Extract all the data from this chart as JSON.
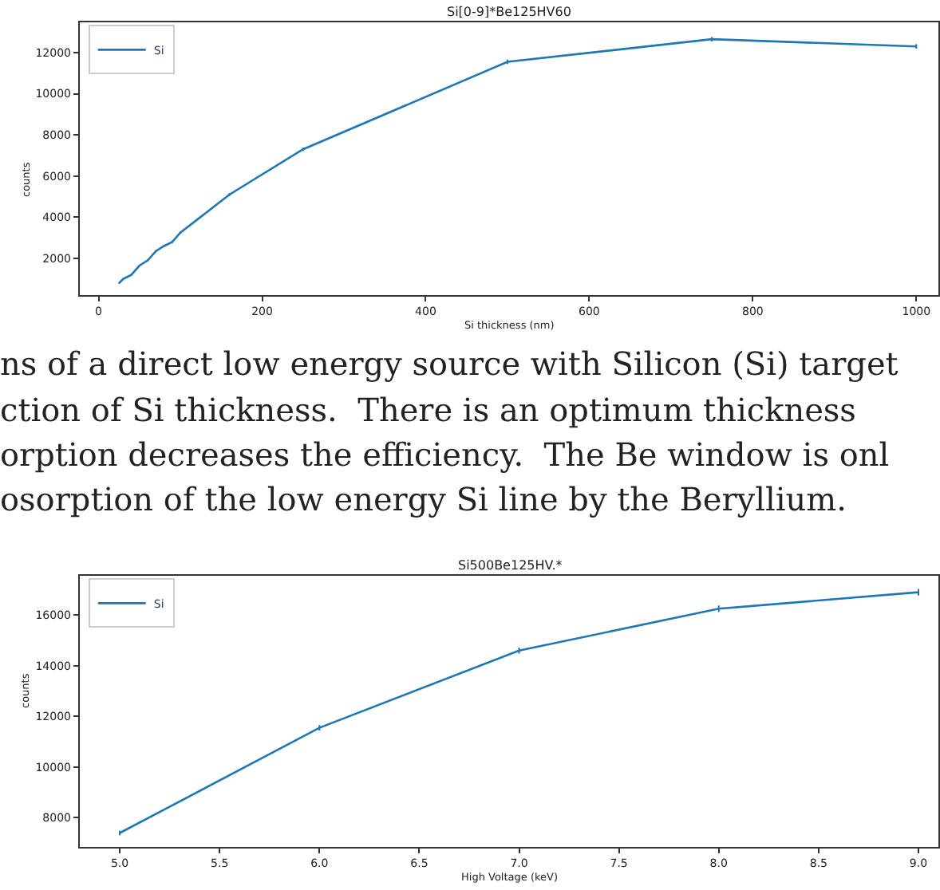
{
  "chart_data": [
    {
      "type": "line",
      "title": "Si[0-9]*Be125HV60",
      "xlabel": "Si thickness (nm)",
      "ylabel": "counts",
      "x": [
        25,
        30,
        35,
        40,
        50,
        60,
        70,
        80,
        90,
        100,
        160,
        250,
        500,
        750,
        1000
      ],
      "series": [
        {
          "name": "Si",
          "color": "#1f77b4",
          "values": [
            800,
            1000,
            1100,
            1200,
            1650,
            1900,
            2350,
            2600,
            2800,
            3250,
            5100,
            7300,
            11550,
            12650,
            12300
          ],
          "errors": [
            30,
            30,
            35,
            35,
            40,
            45,
            50,
            50,
            55,
            55,
            70,
            85,
            110,
            110,
            110
          ]
        }
      ],
      "xlim": [
        -23,
        1027
      ],
      "xticks": [
        0,
        200,
        400,
        600,
        800,
        1000
      ],
      "ylim": [
        217,
        13470
      ],
      "yticks": [
        2000,
        4000,
        6000,
        8000,
        10000,
        12000
      ],
      "legend": "top left",
      "marker": "none",
      "line_style": "solid",
      "annotations": [
        "ns of a direct low energy source with Silicon (Si) target",
        "ction of Si thickness.  There is an optimum thickness",
        "orption decreases the efficiency.  The Be window is onl",
        "osorption of the low energy Si line by the Beryllium."
      ]
    },
    {
      "type": "line",
      "title": "Si500Be125HV.*",
      "xlabel": "High Voltage (keV)",
      "ylabel": "counts",
      "x": [
        5.0,
        6.0,
        7.0,
        8.0,
        9.0
      ],
      "series": [
        {
          "name": "Si",
          "color": "#1f77b4",
          "values": [
            7400,
            11550,
            14600,
            16250,
            16900
          ],
          "errors": [
            90,
            110,
            120,
            130,
            130
          ]
        }
      ],
      "xlim": [
        4.8,
        9.1
      ],
      "xticks": [
        {
          "value": 5,
          "label": "5.0"
        },
        {
          "value": 5.5,
          "label": "5.5"
        },
        {
          "value": 6,
          "label": "6.0"
        },
        {
          "value": 6.5,
          "label": "6.5"
        },
        {
          "value": 7,
          "label": "7.0"
        },
        {
          "value": 7.5,
          "label": "7.5"
        },
        {
          "value": 8,
          "label": "8.0"
        },
        {
          "value": 8.5,
          "label": "8.5"
        },
        {
          "value": 9,
          "label": "9.0"
        }
      ],
      "ylim": [
        6850,
        17550
      ],
      "yticks": [
        8000,
        10000,
        12000,
        14000,
        16000
      ],
      "legend": "top left",
      "marker": "none",
      "line_style": "solid"
    }
  ]
}
